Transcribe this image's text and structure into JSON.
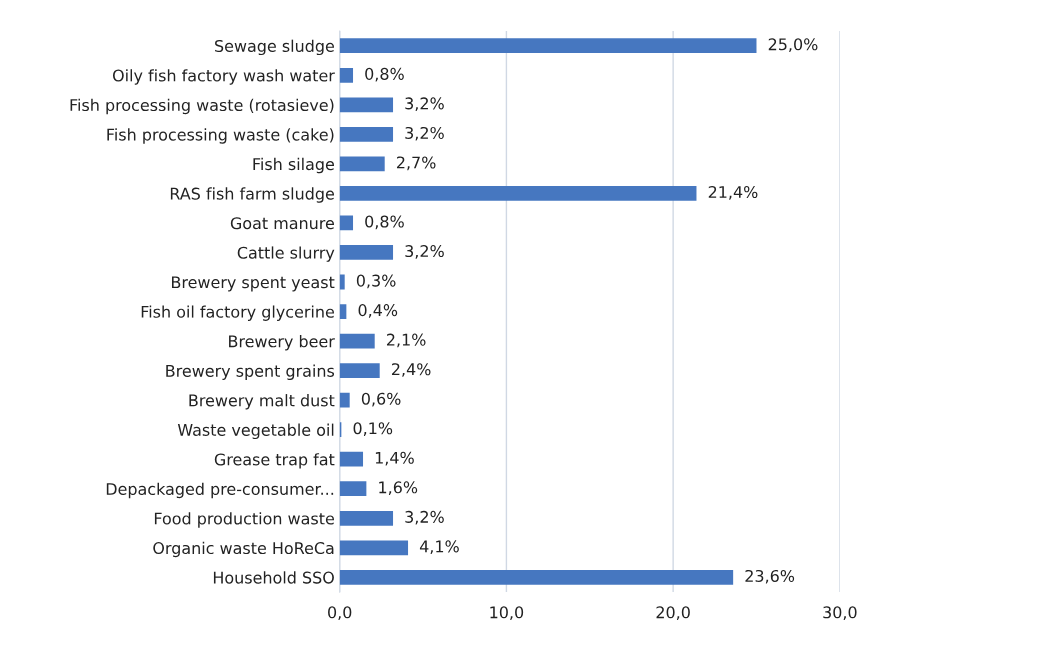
{
  "chart_data": {
    "type": "bar",
    "orientation": "horizontal",
    "categories": [
      "Sewage sludge",
      "Oily fish factory wash water",
      "Fish processing waste (rotasieve)",
      "Fish processing waste (cake)",
      "Fish silage",
      "RAS fish farm sludge",
      "Goat manure",
      "Cattle slurry",
      "Brewery spent yeast",
      "Fish oil factory glycerine",
      "Brewery beer",
      "Brewery spent grains",
      "Brewery malt dust",
      "Waste vegetable oil",
      "Grease trap fat",
      "Depackaged pre-consumer...",
      "Food production waste",
      "Organic waste HoReCa",
      "Household SSO"
    ],
    "values": [
      25.0,
      0.8,
      3.2,
      3.2,
      2.7,
      21.4,
      0.8,
      3.2,
      0.3,
      0.4,
      2.1,
      2.4,
      0.6,
      0.1,
      1.4,
      1.6,
      3.2,
      4.1,
      23.6
    ],
    "value_labels": [
      "25,0%",
      "0,8%",
      "3,2%",
      "3,2%",
      "2,7%",
      "21,4%",
      "0,8%",
      "3,2%",
      "0,3%",
      "0,4%",
      "2,1%",
      "2,4%",
      "0,6%",
      "0,1%",
      "1,4%",
      "1,6%",
      "3,2%",
      "4,1%",
      "23,6%"
    ],
    "color": "#4677c0",
    "xlim": [
      0,
      30
    ],
    "xticks": [
      {
        "value": 0,
        "label": "0,0"
      },
      {
        "value": 10,
        "label": "10,0"
      },
      {
        "value": 20,
        "label": "20,0"
      },
      {
        "value": 30,
        "label": "30,0"
      }
    ],
    "grid": "x"
  }
}
